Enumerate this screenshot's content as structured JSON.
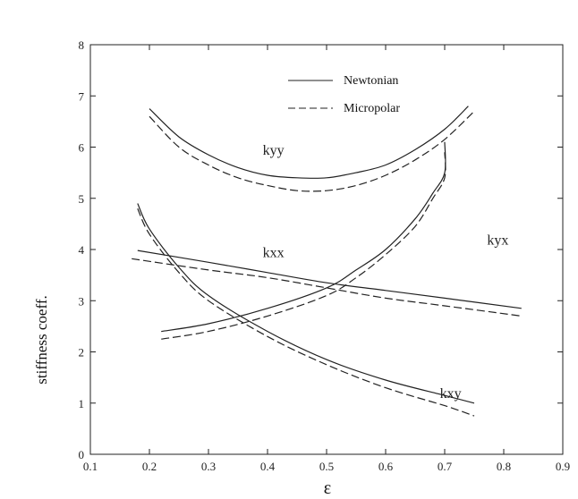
{
  "chart_data": {
    "type": "line",
    "title": "",
    "xlabel": "ε",
    "ylabel": "stiffness coeff.",
    "xlim": [
      0.1,
      0.9
    ],
    "ylim": [
      0,
      8
    ],
    "xticks": [
      "0.1",
      "0.2",
      "0.3",
      "0.4",
      "0.5",
      "0.6",
      "0.7",
      "0.8",
      "0.9"
    ],
    "yticks": [
      "0",
      "1",
      "2",
      "3",
      "4",
      "5",
      "6",
      "7",
      "8"
    ],
    "grid": false,
    "legend": {
      "placement": "top",
      "entries": [
        {
          "name": "Newtonian",
          "style": "solid"
        },
        {
          "name": "Micropolar",
          "style": "dashed"
        }
      ]
    },
    "series": [
      {
        "name": "kyy",
        "fluid": "Newtonian",
        "style": "solid",
        "x": [
          0.2,
          0.25,
          0.3,
          0.35,
          0.4,
          0.45,
          0.5,
          0.55,
          0.6,
          0.65,
          0.7,
          0.74
        ],
        "y": [
          6.75,
          6.2,
          5.85,
          5.6,
          5.45,
          5.4,
          5.4,
          5.5,
          5.65,
          5.95,
          6.35,
          6.8
        ]
      },
      {
        "name": "kyy",
        "fluid": "Micropolar",
        "style": "dashed",
        "x": [
          0.2,
          0.25,
          0.3,
          0.35,
          0.4,
          0.45,
          0.5,
          0.55,
          0.6,
          0.65,
          0.7,
          0.75
        ],
        "y": [
          6.6,
          6.0,
          5.65,
          5.4,
          5.25,
          5.15,
          5.15,
          5.25,
          5.45,
          5.75,
          6.15,
          6.7
        ]
      },
      {
        "name": "kxx",
        "fluid": "Newtonian",
        "style": "solid",
        "x": [
          0.18,
          0.3,
          0.4,
          0.5,
          0.6,
          0.7,
          0.83
        ],
        "y": [
          3.98,
          3.75,
          3.55,
          3.35,
          3.2,
          3.05,
          2.85
        ]
      },
      {
        "name": "kxx",
        "fluid": "Micropolar",
        "style": "dashed",
        "x": [
          0.17,
          0.3,
          0.4,
          0.5,
          0.6,
          0.7,
          0.83
        ],
        "y": [
          3.82,
          3.6,
          3.45,
          3.25,
          3.05,
          2.9,
          2.7
        ]
      },
      {
        "name": "kyx",
        "fluid": "Newtonian",
        "style": "solid",
        "x": [
          0.22,
          0.3,
          0.4,
          0.5,
          0.55,
          0.6,
          0.65,
          0.68,
          0.7,
          0.7
        ],
        "y": [
          2.4,
          2.55,
          2.85,
          3.25,
          3.6,
          4.0,
          4.6,
          5.1,
          5.5,
          6.1
        ]
      },
      {
        "name": "kyx",
        "fluid": "Micropolar",
        "style": "dashed",
        "x": [
          0.22,
          0.3,
          0.4,
          0.5,
          0.55,
          0.6,
          0.65,
          0.68,
          0.7,
          0.7
        ],
        "y": [
          2.25,
          2.4,
          2.7,
          3.1,
          3.45,
          3.9,
          4.45,
          5.0,
          5.4,
          5.9
        ]
      },
      {
        "name": "kxy",
        "fluid": "Newtonian",
        "style": "solid",
        "x": [
          0.18,
          0.2,
          0.25,
          0.3,
          0.4,
          0.5,
          0.6,
          0.7,
          0.75
        ],
        "y": [
          4.9,
          4.4,
          3.65,
          3.1,
          2.4,
          1.85,
          1.45,
          1.15,
          1.0
        ]
      },
      {
        "name": "kxy",
        "fluid": "Micropolar",
        "style": "dashed",
        "x": [
          0.18,
          0.2,
          0.25,
          0.3,
          0.4,
          0.5,
          0.6,
          0.7,
          0.75
        ],
        "y": [
          4.8,
          4.3,
          3.55,
          3.0,
          2.3,
          1.75,
          1.3,
          0.95,
          0.75
        ]
      }
    ],
    "series_labels": [
      {
        "text": "kyy",
        "x": 0.41,
        "y": 5.85
      },
      {
        "text": "kxx",
        "x": 0.41,
        "y": 3.85
      },
      {
        "text": "kyx",
        "x": 0.79,
        "y": 4.1
      },
      {
        "text": "kxy",
        "x": 0.71,
        "y": 1.1
      }
    ]
  }
}
